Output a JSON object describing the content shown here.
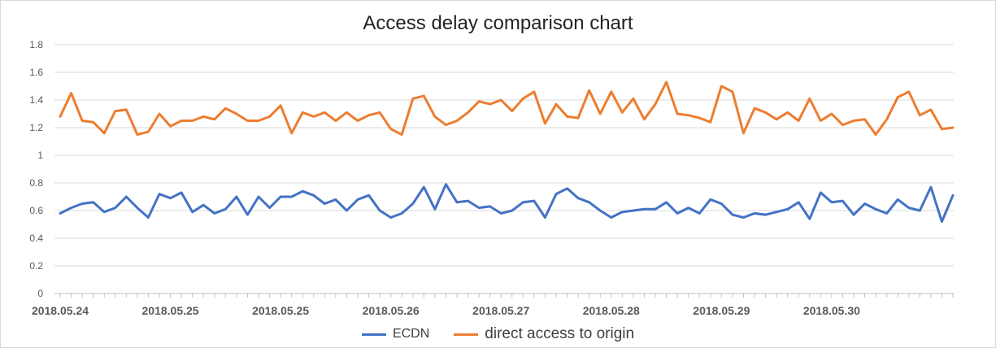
{
  "colors": {
    "ecdn": "#4472c4",
    "origin": "#ed7d31",
    "grid": "#d9d9d9",
    "axis": "#bfbfbf"
  },
  "chart_data": {
    "type": "line",
    "title": "Access delay comparison chart",
    "ylim": [
      0,
      1.8
    ],
    "yticks": [
      "0",
      "0.2",
      "0.4",
      "0.6",
      "0.8",
      "1",
      "1.2",
      "1.4",
      "1.6",
      "1.8"
    ],
    "ytick_values": [
      0,
      0.2,
      0.4,
      0.6,
      0.8,
      1,
      1.2,
      1.4,
      1.6,
      1.8
    ],
    "xtick_labels": [
      {
        "label": "2018.05.24",
        "index": 0
      },
      {
        "label": "2018.05.25",
        "index": 10
      },
      {
        "label": "2018.05.25",
        "index": 20
      },
      {
        "label": "2018.05.26",
        "index": 30
      },
      {
        "label": "2018.05.27",
        "index": 40
      },
      {
        "label": "2018.05.28",
        "index": 50
      },
      {
        "label": "2018.05.29",
        "index": 60
      },
      {
        "label": "2018.05.30",
        "index": 70
      }
    ],
    "grid": true,
    "legend_position": "bottom",
    "series": [
      {
        "name": "ECDN",
        "color": "#4472c4",
        "values": [
          0.58,
          0.62,
          0.65,
          0.66,
          0.59,
          0.62,
          0.7,
          0.62,
          0.55,
          0.72,
          0.69,
          0.73,
          0.59,
          0.64,
          0.58,
          0.61,
          0.7,
          0.57,
          0.7,
          0.62,
          0.7,
          0.7,
          0.74,
          0.71,
          0.65,
          0.68,
          0.6,
          0.68,
          0.71,
          0.6,
          0.55,
          0.58,
          0.65,
          0.77,
          0.61,
          0.79,
          0.66,
          0.67,
          0.62,
          0.63,
          0.58,
          0.6,
          0.66,
          0.67,
          0.55,
          0.72,
          0.76,
          0.69,
          0.66,
          0.6,
          0.55,
          0.59,
          0.6,
          0.61,
          0.61,
          0.66,
          0.58,
          0.62,
          0.58,
          0.68,
          0.65,
          0.57,
          0.55,
          0.58,
          0.57,
          0.59,
          0.61,
          0.66,
          0.54,
          0.73,
          0.66,
          0.67,
          0.57,
          0.65,
          0.61,
          0.58,
          0.68,
          0.62,
          0.6,
          0.77,
          0.52,
          0.71
        ]
      },
      {
        "name": "direct access to origin",
        "color": "#ed7d31",
        "values": [
          1.28,
          1.45,
          1.25,
          1.24,
          1.16,
          1.32,
          1.33,
          1.15,
          1.17,
          1.3,
          1.21,
          1.25,
          1.25,
          1.28,
          1.26,
          1.34,
          1.3,
          1.25,
          1.25,
          1.28,
          1.36,
          1.16,
          1.31,
          1.28,
          1.31,
          1.25,
          1.31,
          1.25,
          1.29,
          1.31,
          1.19,
          1.15,
          1.41,
          1.43,
          1.28,
          1.22,
          1.25,
          1.31,
          1.39,
          1.37,
          1.4,
          1.32,
          1.41,
          1.46,
          1.23,
          1.37,
          1.28,
          1.27,
          1.47,
          1.3,
          1.46,
          1.31,
          1.41,
          1.26,
          1.37,
          1.53,
          1.3,
          1.29,
          1.27,
          1.24,
          1.5,
          1.46,
          1.16,
          1.34,
          1.31,
          1.26,
          1.31,
          1.25,
          1.41,
          1.25,
          1.3,
          1.22,
          1.25,
          1.26,
          1.15,
          1.26,
          1.42,
          1.46,
          1.29,
          1.33,
          1.19,
          1.2
        ]
      }
    ]
  }
}
